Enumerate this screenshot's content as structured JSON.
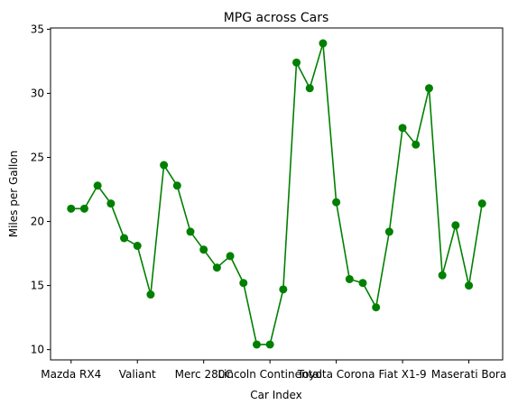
{
  "chart_data": {
    "type": "line",
    "title": "MPG across Cars",
    "xlabel": "Car Index",
    "ylabel": "Miles per Gallon",
    "x_tick_labels": [
      {
        "index": 0,
        "label": "Mazda RX4"
      },
      {
        "index": 5,
        "label": "Valiant"
      },
      {
        "index": 10,
        "label": "Merc 280C"
      },
      {
        "index": 15,
        "label": "Lincoln Continental"
      },
      {
        "index": 20,
        "label": "Toyota Corona"
      },
      {
        "index": 25,
        "label": "Fiat X1-9"
      },
      {
        "index": 30,
        "label": "Maserati Bora"
      }
    ],
    "y_ticks": [
      10,
      15,
      20,
      25,
      30,
      35
    ],
    "ylim": [
      9.2,
      35.1
    ],
    "xlim": [
      -1.55,
      32.55
    ],
    "grid": false,
    "series": [
      {
        "color": "#008000",
        "marker": "circle",
        "values": [
          21.0,
          21.0,
          22.8,
          21.4,
          18.7,
          18.1,
          14.3,
          24.4,
          22.8,
          19.2,
          17.8,
          16.4,
          17.3,
          15.2,
          10.4,
          10.4,
          14.7,
          32.4,
          30.4,
          33.9,
          21.5,
          15.5,
          15.2,
          13.3,
          19.2,
          27.3,
          26.0,
          30.4,
          15.8,
          19.7,
          15.0,
          21.4
        ]
      }
    ]
  }
}
